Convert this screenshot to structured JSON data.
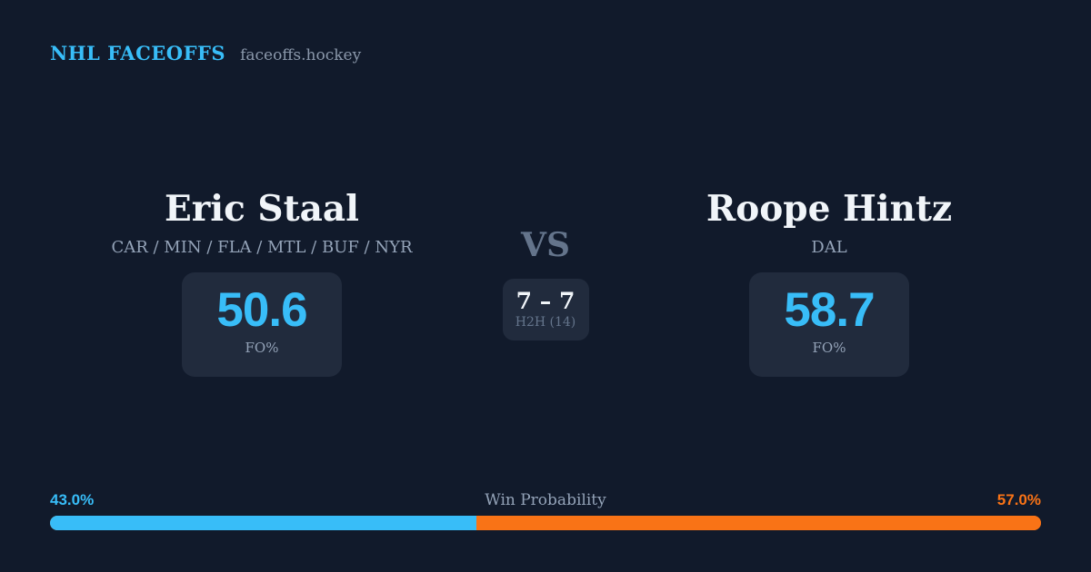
{
  "header": {
    "brand": "NHL FACEOFFS",
    "site": "faceoffs.hockey"
  },
  "players": {
    "left": {
      "name": "Eric Staal",
      "teams": "CAR / MIN / FLA / MTL / BUF / NYR",
      "fo_pct": "50.6",
      "stat_label": "FO%"
    },
    "right": {
      "name": "Roope Hintz",
      "teams": "DAL",
      "fo_pct": "58.7",
      "stat_label": "FO%"
    }
  },
  "versus": {
    "label": "VS",
    "h2h_score": "7 – 7",
    "h2h_label": "H2H (14)"
  },
  "win_probability": {
    "title": "Win Probability",
    "left_label": "43.0%",
    "right_label": "57.0%",
    "left_pct": 43.0,
    "right_pct": 57.0
  },
  "colors": {
    "background": "#111a2b",
    "card": "#212b3d",
    "accent_blue": "#38bdf8",
    "accent_orange": "#f97316",
    "text_primary": "#f1f5f9",
    "text_muted": "#94a3b8",
    "text_dim": "#64748b"
  },
  "chart_data": {
    "type": "bar",
    "title": "Win Probability",
    "categories": [
      "Eric Staal",
      "Roope Hintz"
    ],
    "series": [
      {
        "name": "Win Probability (%)",
        "values": [
          43.0,
          57.0
        ]
      },
      {
        "name": "Faceoff Win % (FO%)",
        "values": [
          50.6,
          58.7
        ]
      },
      {
        "name": "Head-to-head wins (of 14)",
        "values": [
          7,
          7
        ]
      }
    ],
    "legend_position": "none",
    "colors": [
      "#38bdf8",
      "#f97316"
    ],
    "annotations": [
      "H2H (14): 7 – 7"
    ]
  }
}
